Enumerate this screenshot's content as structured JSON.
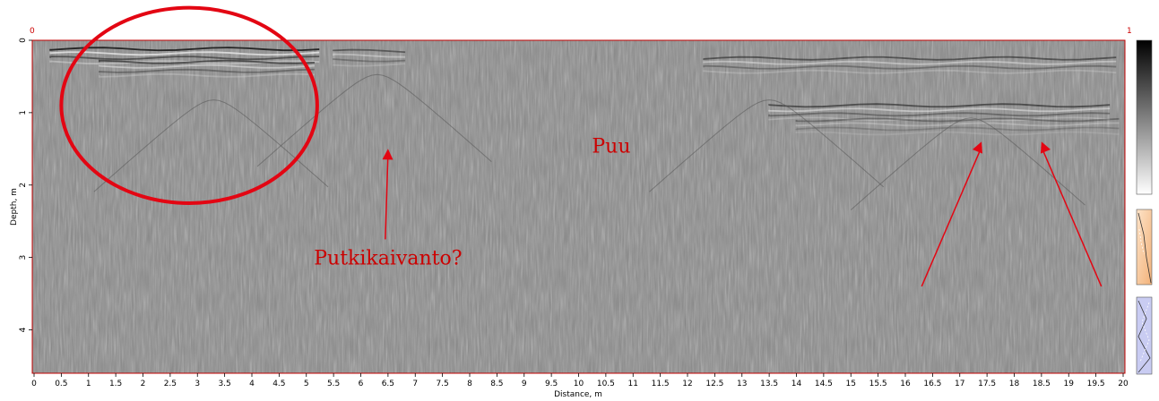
{
  "chart_data": {
    "type": "heatmap",
    "title": "",
    "xlabel": "Distance, m",
    "ylabel": "Depth, m",
    "xlim": [
      0,
      20
    ],
    "ylim": [
      4.6,
      0
    ],
    "x_ticks": [
      "0",
      "0.5",
      "1",
      "1.5",
      "2",
      "2.5",
      "3",
      "3.5",
      "4",
      "4.5",
      "5",
      "5.5",
      "6",
      "6.5",
      "7",
      "7.5",
      "8",
      "8.5",
      "9",
      "9.5",
      "10",
      "10.5",
      "11",
      "11.5",
      "12",
      "12.5",
      "13",
      "13.5",
      "14",
      "14.5",
      "15",
      "15.5",
      "16",
      "16.5",
      "17",
      "17.5",
      "18",
      "18.5",
      "19",
      "19.5",
      "20"
    ],
    "y_ticks": [
      "0",
      "1",
      "2",
      "3",
      "4"
    ],
    "colormap": "grayscale",
    "top_markers": {
      "left": "0",
      "right": "1"
    },
    "annotations": [
      {
        "text": "Putkikaivanto?",
        "x": 6.5,
        "y": 3.0,
        "arrow_to": [
          6.5,
          1.5
        ]
      },
      {
        "text": "Puu",
        "x": 10.6,
        "y": 1.45
      },
      {
        "text": "",
        "shape": "ellipse",
        "cx": 2.85,
        "cy": 0.9,
        "rx": 2.35,
        "ry": 1.35
      },
      {
        "text": "",
        "arrow_from": [
          16.3,
          3.4
        ],
        "arrow_to": [
          17.4,
          1.4
        ]
      },
      {
        "text": "",
        "arrow_from": [
          19.6,
          3.4
        ],
        "arrow_to": [
          18.5,
          1.4
        ]
      }
    ],
    "reflectors": [
      {
        "x0": 0.3,
        "x1": 5.3,
        "depth": 0.12,
        "strength": 0.9
      },
      {
        "x0": 1.2,
        "x1": 5.3,
        "depth": 0.3,
        "strength": 0.6
      },
      {
        "x0": 5.5,
        "x1": 7.0,
        "depth": 0.15,
        "strength": 0.5
      },
      {
        "x0": 12.3,
        "x1": 20,
        "depth": 0.25,
        "strength": 0.55
      },
      {
        "x0": 13.5,
        "x1": 20,
        "depth": 0.9,
        "strength": 0.6
      },
      {
        "x0": 14,
        "x1": 20,
        "depth": 1.1,
        "strength": 0.35
      }
    ],
    "accent_color": "#e30613",
    "frame_color": "#c00000"
  }
}
